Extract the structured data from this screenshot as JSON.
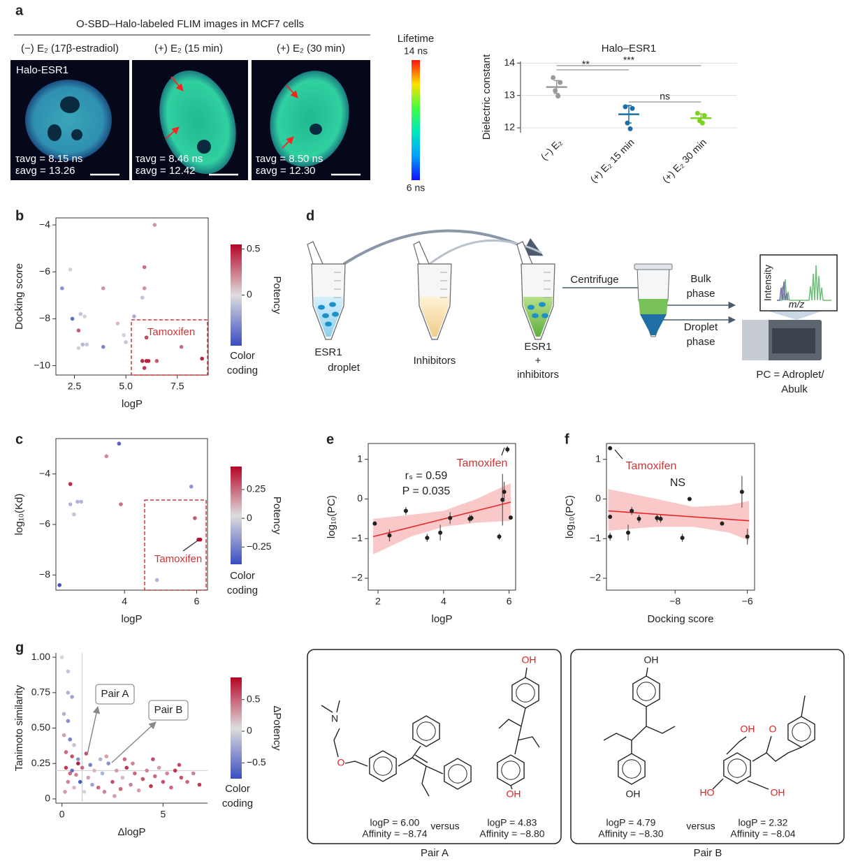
{
  "figure": {
    "panel_labels": [
      "a",
      "b",
      "c",
      "d",
      "e",
      "f",
      "g"
    ],
    "panel_a": {
      "title": "O-SBD–Halo-labeled FLIM images in MCF7 cells",
      "conditions": [
        "(−) E₂ (17β-estradiol)",
        "(+) E₂ (15 min)",
        "(+) E₂ (30 min)"
      ],
      "image_label": "Halo-ESR1",
      "tau": [
        "τavg = 8.15 ns",
        "τavg = 8.46 ns",
        "τavg = 8.50 ns"
      ],
      "epsilon": [
        "εavg = 13.26",
        "εavg = 12.42",
        "εavg = 12.30"
      ],
      "lifetime_title": "Lifetime",
      "lifetime_max": "14 ns",
      "lifetime_min": "6 ns"
    },
    "panel_d": {
      "droplet": [
        "ESR1",
        "droplet"
      ],
      "inhibitors": "Inhibitors",
      "mixture": [
        "ESR1",
        "+",
        "inhibitors"
      ],
      "centrifuge": "Centrifuge",
      "bulk": [
        "Bulk",
        "phase"
      ],
      "droplet_phase": [
        "Droplet",
        "phase"
      ],
      "spectrum_y": "Intensity",
      "spectrum_x": "m/z",
      "formula": [
        "PC = Adroplet/",
        "Abulk"
      ]
    },
    "pairs": [
      {
        "title": "Pair A",
        "versus": "versus",
        "left": [
          "logP = 6.00",
          "Affinity = −8.74"
        ],
        "right": [
          "logP = 4.83",
          "Affinity = −8.80"
        ],
        "atoms": [
          "N",
          "O",
          "OH",
          "OH"
        ]
      },
      {
        "title": "Pair B",
        "versus": "versus",
        "left": [
          "logP = 4.79",
          "Affinity = −8.30"
        ],
        "right": [
          "logP = 2.32",
          "Affinity = −8.04"
        ],
        "atoms": [
          "OH",
          "OH",
          "OH",
          "O",
          "HO",
          "OH"
        ]
      }
    ]
  },
  "chart_data": [
    {
      "type": "strip",
      "title": "Halo–ESR1",
      "y_label": "Dielectric constant",
      "categories": [
        "(−) E₂",
        "(+) E₂ 15 min",
        "(+) E₂ 30 min"
      ],
      "points": [
        [
          13.55,
          13.4,
          13.15,
          12.98
        ],
        [
          12.65,
          12.6,
          12.15,
          11.97
        ],
        [
          12.45,
          12.38,
          12.22,
          12.15
        ]
      ],
      "means": [
        13.26,
        12.42,
        12.3
      ],
      "sd": [
        0.2,
        0.27,
        0.13
      ],
      "colors": [
        "#9a9a9a",
        "#1b6fa8",
        "#7ed321"
      ],
      "ylim": [
        11.85,
        14.05
      ],
      "yticks": [
        12,
        13,
        14
      ],
      "grid": true,
      "frame": "left",
      "significance": [
        {
          "pair": [
            0,
            1
          ],
          "label": "**"
        },
        {
          "pair": [
            0,
            2
          ],
          "label": "***"
        },
        {
          "pair": [
            1,
            2
          ],
          "label": "ns"
        }
      ]
    },
    {
      "type": "scatter",
      "x_label": "logP",
      "y_label": "Docking score",
      "x": [
        1.9,
        2.3,
        2.4,
        2.7,
        2.7,
        2.8,
        2.9,
        3.1,
        3.0,
        3.9,
        3.9,
        4.6,
        4.9,
        5.0,
        5.4,
        5.9,
        5.9,
        6.4,
        5.8,
        6.0,
        5.8,
        5.9,
        6.0,
        6.1,
        6.5,
        7.7,
        8.7
      ],
      "y": [
        -6.7,
        -5.9,
        -8.0,
        -8.5,
        -9.25,
        -7.8,
        -9.1,
        -9.1,
        -7.9,
        -9.2,
        -6.7,
        -8.2,
        -8.7,
        -9.0,
        -7.9,
        -6.7,
        -5.8,
        -4.0,
        -7.1,
        -8.8,
        -9.8,
        -10.1,
        -9.8,
        -9.8,
        -9.8,
        -9.2,
        -9.7
      ],
      "c": [
        -0.3,
        -0.05,
        -0.45,
        0.35,
        -0.05,
        -0.1,
        -0.15,
        -0.1,
        0.05,
        -0.35,
        0.2,
        0.1,
        -0.05,
        -0.1,
        -0.2,
        0.2,
        0.3,
        0.2,
        -0.1,
        0.4,
        0.5,
        0.45,
        0.5,
        0.5,
        0.35,
        0.3,
        0.5
      ],
      "colormap": [
        "#3b4cc0",
        "#dddddd",
        "#b40426"
      ],
      "clim": [
        -0.55,
        0.55
      ],
      "cticks": [
        0.5,
        0
      ],
      "xlim": [
        1.6,
        9.0
      ],
      "xticks": [
        {
          "value": 2.5,
          "label": "2.5"
        },
        {
          "value": 5,
          "label": "5.0"
        },
        {
          "value": 7.5,
          "label": "7.5"
        }
      ],
      "ylim": [
        -10.4,
        -3.7
      ],
      "yticks": [
        {
          "value": -4,
          "label": "−4"
        },
        {
          "value": -6,
          "label": "−6"
        },
        {
          "value": -8,
          "label": "−8"
        },
        {
          "value": -10,
          "label": "−10"
        }
      ],
      "frame": "box",
      "colorbar_label": "Potency",
      "colorbar_note": [
        "Color",
        "coding"
      ],
      "annotation": "Tamoxifen"
    },
    {
      "type": "scatter",
      "x_label": "logP",
      "y_label": "log₁₀(Kd)",
      "x": [
        2.2,
        2.5,
        2.5,
        2.6,
        2.7,
        2.8,
        3.5,
        3.85,
        3.9,
        4.9,
        5.85,
        5.95,
        6.05,
        6.1
      ],
      "y": [
        -8.4,
        -4.4,
        -5.2,
        -5.6,
        -5.1,
        -5.1,
        -3.3,
        -2.8,
        -5.2,
        -8.2,
        -4.5,
        -5.75,
        -6.6,
        -6.6
      ],
      "c": [
        -0.4,
        0.4,
        -0.1,
        -0.05,
        -0.1,
        -0.1,
        0.2,
        -0.35,
        0.25,
        -0.1,
        -0.2,
        0.3,
        0.45,
        0.45
      ],
      "colormap": [
        "#3b4cc0",
        "#dddddd",
        "#b40426"
      ],
      "clim": [
        -0.4,
        0.45
      ],
      "cticks": [
        0.25,
        0,
        {
          "value": -0.25,
          "label": "−0.25"
        }
      ],
      "xlim": [
        2.1,
        6.3
      ],
      "xticks": [
        4,
        6
      ],
      "ylim": [
        -8.6,
        -2.6
      ],
      "yticks": [
        {
          "value": -4,
          "label": "−4"
        },
        {
          "value": -6,
          "label": "−6"
        },
        {
          "value": -8,
          "label": "−8"
        }
      ],
      "frame": "box",
      "colorbar_label": "Potency",
      "colorbar_note": [
        "Color",
        "coding"
      ],
      "annotation": "Tamoxifen"
    },
    {
      "type": "regression",
      "x_label": "logP",
      "y_label": "log₁₀(PC)",
      "x": [
        1.9,
        2.35,
        2.85,
        3.5,
        3.9,
        4.2,
        4.8,
        4.85,
        5.7,
        5.8,
        5.85,
        5.95,
        6.05
      ],
      "y": [
        -0.62,
        -0.92,
        -0.3,
        -0.98,
        -0.85,
        -0.48,
        -0.5,
        -0.48,
        -0.95,
        -0.02,
        0.18,
        1.25,
        -0.47
      ],
      "err": [
        0.03,
        0.15,
        0.1,
        0.1,
        0.2,
        0.15,
        0.1,
        0.08,
        0.08,
        0.65,
        0.25,
        0.08,
        0.05
      ],
      "fit": {
        "x": [
          1.85,
          6.05
        ],
        "y": [
          -0.95,
          -0.08
        ]
      },
      "band": {
        "x": [
          1.85,
          3,
          4,
          5,
          6.05
        ],
        "lower": [
          -1.4,
          -0.95,
          -0.7,
          -0.6,
          -0.55
        ],
        "upper": [
          -0.5,
          -0.4,
          -0.3,
          0.0,
          0.4
        ]
      },
      "color": "#222222",
      "fit_color": "#e8272b",
      "band_color": "#f6b2b4",
      "xlim": [
        1.7,
        6.2
      ],
      "xticks": [
        2,
        4,
        6
      ],
      "ylim": [
        -2.3,
        1.4
      ],
      "yticks": [
        1,
        0,
        {
          "value": -1,
          "label": "−1"
        },
        {
          "value": -2,
          "label": "−2"
        }
      ],
      "frame": "box",
      "annotation": "Tamoxifen",
      "stats": [
        "rₛ = 0.59",
        "P = 0.035"
      ]
    },
    {
      "type": "regression",
      "x_label": "Docking score",
      "y_label": "log₁₀(PC)",
      "x": [
        -9.8,
        -9.8,
        -9.8,
        -9.3,
        -9.2,
        -9.0,
        -8.5,
        -8.4,
        -7.8,
        -7.6,
        -6.7,
        -6.15,
        -6.0
      ],
      "y": [
        1.28,
        -0.45,
        -0.95,
        -0.85,
        -0.3,
        -0.5,
        -0.48,
        -0.5,
        -0.98,
        0.0,
        -0.62,
        0.18,
        -0.95
      ],
      "err": [
        0.05,
        0.05,
        0.1,
        0.2,
        0.1,
        0.1,
        0.1,
        0.1,
        0.1,
        0.05,
        0.03,
        0.4,
        0.2
      ],
      "fit": {
        "x": [
          -9.85,
          -5.95
        ],
        "y": [
          -0.3,
          -0.55
        ]
      },
      "band": {
        "x": [
          -9.85,
          -8.5,
          -7.5,
          -6.5,
          -5.95
        ],
        "lower": [
          -0.8,
          -0.7,
          -0.7,
          -0.85,
          -1.05
        ],
        "upper": [
          0.25,
          0.0,
          -0.2,
          -0.15,
          -0.05
        ]
      },
      "color": "#222222",
      "fit_color": "#e8272b",
      "band_color": "#f6b2b4",
      "xlim": [
        -9.9,
        -5.8
      ],
      "xticks": [
        {
          "value": -8,
          "label": "−8"
        },
        {
          "value": -6,
          "label": "−6"
        }
      ],
      "ylim": [
        -2.3,
        1.4
      ],
      "yticks": [
        1,
        0,
        {
          "value": -1,
          "label": "−1"
        },
        {
          "value": -2,
          "label": "−2"
        }
      ],
      "frame": "box",
      "annotation": "Tamoxifen",
      "stats": [
        "NS"
      ]
    },
    {
      "type": "scatter",
      "x_label": "ΔlogP",
      "y_label": "Tanimoto similarity",
      "x": [
        0,
        0.3,
        0.3,
        0.5,
        0.1,
        0.3,
        0.1,
        0.4,
        0.6,
        0.2,
        0.5,
        0.8,
        0.2,
        0.5,
        0.7,
        1.0,
        1.2,
        1.3,
        1.5,
        1.6,
        1.8,
        2.0,
        2.1,
        2.3,
        2.5,
        2.7,
        2.9,
        3.0,
        3.2,
        3.4,
        3.6,
        3.8,
        4.0,
        4.2,
        4.4,
        4.6,
        4.8,
        5.0,
        5.2,
        5.4,
        5.6,
        5.9,
        6.2,
        6.5,
        6.8,
        0.6,
        0.9,
        1.1,
        0.3,
        0.8,
        2.2,
        1.9,
        3.5,
        4.5,
        0.15,
        0.4,
        1.4,
        2.6,
        3.1,
        5.8
      ],
      "y": [
        1.0,
        0.9,
        0.75,
        0.72,
        0.6,
        0.55,
        0.45,
        0.42,
        0.38,
        0.33,
        0.3,
        0.28,
        0.22,
        0.2,
        0.17,
        0.22,
        0.32,
        0.15,
        0.1,
        0.2,
        0.08,
        0.18,
        0.05,
        0.25,
        0.12,
        0.2,
        0.07,
        0.15,
        0.22,
        0.1,
        0.18,
        0.06,
        0.14,
        0.2,
        0.09,
        0.16,
        0.22,
        0.12,
        0.18,
        0.08,
        0.2,
        0.15,
        0.12,
        0.18,
        0.1,
        0.08,
        0.12,
        0.05,
        0.12,
        0.25,
        0.3,
        0.28,
        0.25,
        0.28,
        0.05,
        0.18,
        0.24,
        0.02,
        0.28,
        0.24
      ],
      "c": [
        0.1,
        -0.1,
        -0.2,
        -0.3,
        -0.2,
        -0.4,
        0.3,
        -0.5,
        -0.1,
        0.5,
        0.6,
        -0.4,
        0.7,
        -0.6,
        0.4,
        0.5,
        0.6,
        0.3,
        -0.3,
        0.2,
        0.5,
        -0.2,
        0.4,
        -0.4,
        0.6,
        0.3,
        0.5,
        0.2,
        0.7,
        0.4,
        0.5,
        0.3,
        0.6,
        0.4,
        0.7,
        0.5,
        0.3,
        0.6,
        0.4,
        0.5,
        0.7,
        0.6,
        0.5,
        0.4,
        0.7,
        0.2,
        -0.7,
        0.1,
        0.4,
        0.8,
        0.3,
        -0.2,
        0.4,
        0.6,
        0.3,
        0.5,
        -0.5,
        0.3,
        0.5,
        0.6
      ],
      "colormap": [
        "#3b4cc0",
        "#dddddd",
        "#b40426"
      ],
      "clim": [
        -0.75,
        0.85
      ],
      "cticks": [
        0.5,
        0,
        {
          "value": -0.5,
          "label": "−0.5"
        }
      ],
      "xlim": [
        -0.3,
        7.2
      ],
      "xticks": [
        0,
        5
      ],
      "ylim": [
        -0.03,
        1.03
      ],
      "yticks": [
        0,
        0.25,
        {
          "value": 0.5,
          "label": "0.50"
        },
        {
          "value": 0.75,
          "label": "0.75"
        },
        {
          "value": 1,
          "label": "1.00"
        }
      ],
      "reference_lines": {
        "x": 1,
        "y": 0.2
      },
      "frame": "open",
      "colorbar_label": "ΔPotency",
      "colorbar_note": [
        "Color",
        "coding"
      ],
      "annotations": [
        "Pair A",
        "Pair B"
      ]
    }
  ]
}
